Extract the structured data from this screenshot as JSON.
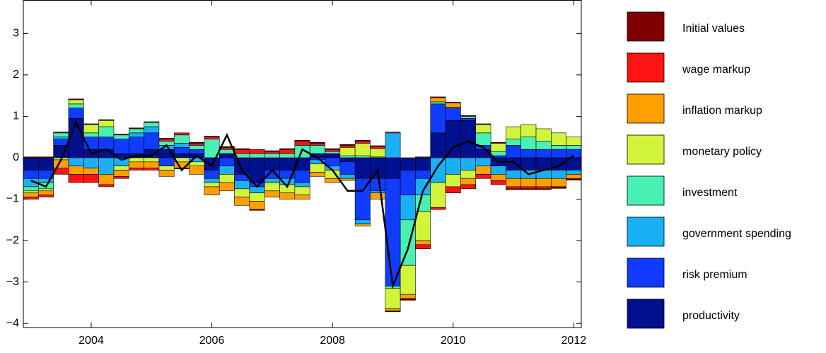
{
  "chart_data": {
    "type": "stacked-bar-line",
    "x": [
      2003,
      2003.25,
      2003.5,
      2003.75,
      2004,
      2004.25,
      2004.5,
      2004.75,
      2005,
      2005.25,
      2005.5,
      2005.75,
      2006,
      2006.25,
      2006.5,
      2006.75,
      2007,
      2007.25,
      2007.5,
      2007.75,
      2008,
      2008.25,
      2008.5,
      2008.75,
      2009,
      2009.25,
      2009.5,
      2009.75,
      2010,
      2010.25,
      2010.5,
      2010.75,
      2011,
      2011.25,
      2011.5,
      2011.75,
      2012
    ],
    "xlim": [
      2002.875,
      2012.125
    ],
    "xticks": [
      2004,
      2006,
      2008,
      2010,
      2012
    ],
    "ylim": [
      -4.1,
      3.8
    ],
    "yticks": [
      {
        "value": -4,
        "label": "−4"
      },
      {
        "value": -3,
        "label": "−3"
      },
      {
        "value": -2,
        "label": "−2"
      },
      {
        "value": -1,
        "label": "−1"
      },
      0,
      1,
      2,
      3
    ],
    "series": [
      {
        "name": "Initial values",
        "color": "#800000",
        "values": [
          0.02,
          0.02,
          0.02,
          0.02,
          0.02,
          0.02,
          0.02,
          0.02,
          0.02,
          0.02,
          -0.02,
          0.02,
          0.02,
          0.02,
          0.02,
          -0.02,
          0.02,
          0.02,
          0.02,
          0.02,
          0.02,
          0.02,
          0.02,
          0.02,
          -0.02,
          -0.02,
          0.02,
          0.02,
          0.02,
          0.02,
          0.02,
          0.02,
          -0.02,
          -0.02,
          -0.02,
          -0.02,
          -0.02
        ]
      },
      {
        "name": "wage markup",
        "color": "#ff1414",
        "values": [
          -0.05,
          -0.05,
          -0.15,
          -0.2,
          -0.2,
          -0.05,
          -0.05,
          -0.05,
          -0.05,
          0.05,
          0.05,
          0.05,
          0.05,
          0.05,
          0.1,
          0.1,
          0.05,
          0.1,
          0.1,
          0.05,
          0.05,
          0.05,
          0.05,
          0.05,
          0.02,
          -0.02,
          -0.1,
          -0.05,
          -0.15,
          -0.1,
          -0.1,
          -0.1,
          -0.05,
          -0.05,
          -0.05,
          -0.02,
          -0.02
        ]
      },
      {
        "name": "inflation markup",
        "color": "#ffa000",
        "values": [
          -0.1,
          -0.1,
          -0.2,
          -0.2,
          -0.15,
          -0.25,
          -0.15,
          -0.15,
          -0.15,
          -0.15,
          -0.15,
          -0.2,
          -0.2,
          -0.2,
          -0.2,
          -0.2,
          -0.15,
          -0.15,
          -0.1,
          -0.1,
          -0.1,
          -0.05,
          -0.05,
          -0.15,
          -0.05,
          -0.1,
          -0.1,
          0.1,
          0.1,
          -0.15,
          -0.2,
          -0.15,
          -0.2,
          -0.2,
          -0.2,
          -0.2,
          -0.1
        ]
      },
      {
        "name": "monetary policy",
        "color": "#d2f53c",
        "values": [
          -0.05,
          -0.05,
          -0.05,
          0.1,
          0.2,
          0.15,
          -0.1,
          -0.1,
          -0.1,
          -0.1,
          -0.1,
          -0.1,
          -0.1,
          -0.2,
          -0.2,
          -0.2,
          -0.2,
          -0.2,
          -0.2,
          -0.2,
          -0.2,
          0.2,
          0.3,
          0.2,
          -0.5,
          -0.7,
          -0.7,
          -0.6,
          -0.3,
          -0.2,
          0.2,
          0.2,
          0.3,
          0.3,
          0.3,
          0.3,
          0.2
        ]
      },
      {
        "name": "investment",
        "color": "#48f0b4",
        "values": [
          -0.1,
          -0.15,
          0.1,
          0.1,
          0.1,
          0.25,
          0.1,
          0.1,
          0.1,
          0.1,
          0.2,
          0.1,
          0.45,
          0.1,
          0.1,
          0.1,
          0.1,
          0.1,
          0.3,
          0.2,
          0.05,
          0.05,
          0.05,
          0.02,
          -0.05,
          -1.1,
          -0.4,
          0.05,
          0.02,
          0.05,
          0.3,
          0.1,
          0.15,
          0.3,
          0.2,
          0.1,
          0.1
        ]
      },
      {
        "name": "government spending",
        "color": "#1ab0f5",
        "values": [
          -0.2,
          -0.1,
          0.05,
          -0.2,
          -0.25,
          -0.4,
          -0.2,
          0.1,
          0.15,
          0.1,
          0.1,
          -0.1,
          -0.1,
          -0.2,
          -0.2,
          -0.15,
          -0.1,
          -0.15,
          -0.1,
          -0.1,
          -0.1,
          -0.1,
          -0.1,
          -0.05,
          0.6,
          -0.6,
          -0.4,
          -0.6,
          -0.4,
          -0.3,
          -0.2,
          -0.2,
          -0.2,
          -0.2,
          -0.2,
          -0.2,
          -0.1
        ]
      },
      {
        "name": "risk premium",
        "color": "#0f3cff",
        "values": [
          -0.2,
          -0.2,
          0.15,
          0.25,
          0.3,
          0.3,
          0.35,
          0.4,
          0.4,
          -0.2,
          0.15,
          0.1,
          -0.2,
          -0.2,
          -0.15,
          -0.1,
          -0.2,
          -0.2,
          -0.3,
          -0.05,
          -0.2,
          -0.3,
          -1.0,
          -0.3,
          -2.6,
          -0.6,
          -0.2,
          0.7,
          0.3,
          0.05,
          0.1,
          0.05,
          0.3,
          0.2,
          0.2,
          0.2,
          0.2
        ]
      },
      {
        "name": "productivity",
        "color": "#00108f",
        "values": [
          -0.3,
          -0.3,
          0.3,
          0.95,
          0.2,
          0.2,
          0.1,
          0.1,
          0.2,
          0.2,
          0.1,
          0.1,
          -0.3,
          0.1,
          -0.4,
          -0.6,
          -0.3,
          -0.3,
          -0.3,
          0.1,
          0.1,
          -0.1,
          -0.5,
          -0.5,
          -0.5,
          -0.3,
          -0.3,
          0.6,
          0.9,
          0.9,
          0.2,
          -0.2,
          -0.3,
          -0.3,
          -0.3,
          -0.3,
          -0.3
        ]
      }
    ],
    "line": {
      "color": "#000000",
      "values": [
        -0.55,
        -0.7,
        -0.05,
        0.85,
        0.1,
        0.2,
        -0.05,
        0.05,
        0.05,
        0.3,
        -0.3,
        0.05,
        -0.2,
        0.55,
        -0.3,
        -0.7,
        -0.3,
        -0.7,
        0.2,
        0.0,
        -0.3,
        -0.8,
        -0.8,
        -0.3,
        -3.1,
        -2.2,
        -0.8,
        -0.2,
        0.25,
        0.4,
        0.25,
        -0.1,
        -0.1,
        -0.4,
        -0.3,
        -0.2,
        0.05
      ]
    }
  }
}
